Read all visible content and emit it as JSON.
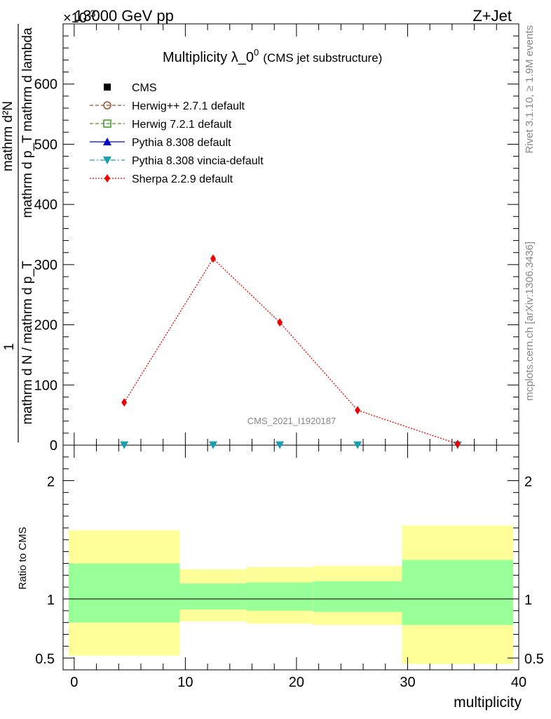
{
  "header": {
    "energy": "13000 GeV pp",
    "process": "Z+Jet",
    "multiplier_base": "×10",
    "multiplier_exp": "-3"
  },
  "title": {
    "main": "Multiplicity λ_0",
    "sup": "0",
    "sub": "(CMS jet substructure)"
  },
  "side_labels": {
    "rivet": "Rivet 3.1.10, ≥ 1.9M events",
    "mcplots": "mcplots.cern.ch [arXiv:1306.3436]"
  },
  "analysis_id": "CMS_2021_I1920187",
  "chart_data": [
    {
      "type": "line",
      "panel": "main",
      "ylabel": "1 / mathrm d N / mathrm d p_T mathrm d p_T · mathrm d^2N / mathrm d lambda",
      "ylabel_numerator": "mathrm d²N",
      "ylabel_numerator_lines": [
        "mathrm d²N",
        "mathrm d p_T mathrm d lambda"
      ],
      "ylabel_denominator": "mathrm d N / mathrm d p_T",
      "ylabel_one": "1",
      "xlim": [
        -1,
        40
      ],
      "ylim": [
        0,
        700
      ],
      "yticks": [
        "0",
        "100",
        "200",
        "300",
        "400",
        "500",
        "600"
      ],
      "ytick_values": [
        0,
        100,
        200,
        300,
        400,
        500,
        600
      ],
      "legend_position": "top-left",
      "series": [
        {
          "name": "CMS",
          "color": "#000000",
          "marker": "square-filled",
          "x": [],
          "y": []
        },
        {
          "name": "Herwig++ 2.7.1 default",
          "color": "#a0522d",
          "marker": "circle-open",
          "line": "dashed",
          "x": [],
          "y": []
        },
        {
          "name": "Herwig 7.2.1 default",
          "color": "#3a9a1a",
          "marker": "square-open",
          "line": "dashed",
          "x": [],
          "y": []
        },
        {
          "name": "Pythia 8.308 default",
          "color": "#0000cc",
          "marker": "triangle-up",
          "line": "solid",
          "x": [],
          "y": []
        },
        {
          "name": "Pythia 8.308 vincia-default",
          "color": "#1a9fb0",
          "marker": "triangle-down",
          "line": "dashdot",
          "x": [
            4.5,
            12.5,
            18.5,
            25.5,
            34.5
          ],
          "y": [
            0.5,
            0.5,
            0.5,
            0.5,
            0.3
          ]
        },
        {
          "name": "Sherpa 2.2.9 default",
          "color": "#ee0000",
          "marker": "diamond",
          "line": "dotted",
          "x": [
            4.5,
            12.5,
            18.5,
            25.5,
            34.5
          ],
          "y": [
            71,
            310,
            204,
            58,
            2
          ]
        }
      ]
    },
    {
      "type": "area",
      "panel": "ratio",
      "ylabel": "Ratio to CMS",
      "xlabel": "multiplicity",
      "xlim": [
        -1,
        40
      ],
      "ylim": [
        0.4,
        2.3
      ],
      "xticks": [
        "0",
        "10",
        "20",
        "30",
        "40"
      ],
      "xtick_values": [
        0,
        10,
        20,
        30,
        40
      ],
      "yticks": [
        "0.5",
        "1",
        "2"
      ],
      "ytick_values": [
        0.5,
        1,
        2
      ],
      "reference_line": 1,
      "bands": [
        {
          "x0": -0.5,
          "x1": 9.5,
          "inner_lo": 0.8,
          "inner_hi": 1.3,
          "outer_lo": 0.52,
          "outer_hi": 1.58
        },
        {
          "x0": 9.5,
          "x1": 15.5,
          "inner_lo": 0.91,
          "inner_hi": 1.13,
          "outer_lo": 0.81,
          "outer_hi": 1.25
        },
        {
          "x0": 15.5,
          "x1": 21.5,
          "inner_lo": 0.9,
          "inner_hi": 1.14,
          "outer_lo": 0.79,
          "outer_hi": 1.27
        },
        {
          "x0": 21.5,
          "x1": 29.5,
          "inner_lo": 0.89,
          "inner_hi": 1.15,
          "outer_lo": 0.78,
          "outer_hi": 1.28
        },
        {
          "x0": 29.5,
          "x1": 39.5,
          "inner_lo": 0.78,
          "inner_hi": 1.33,
          "outer_lo": 0.45,
          "outer_hi": 1.62
        }
      ],
      "inner_color": "#99ff99",
      "outer_color": "#ffff99"
    }
  ]
}
